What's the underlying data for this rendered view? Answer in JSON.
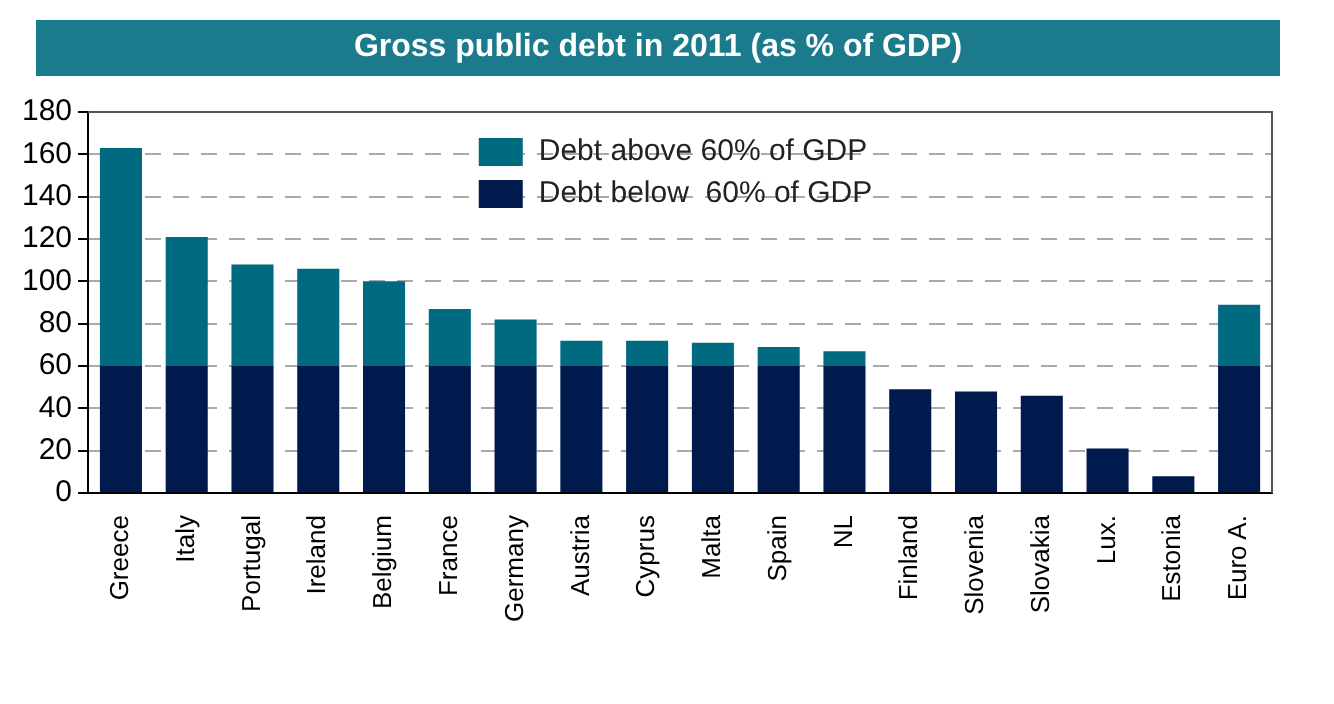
{
  "chart_data": {
    "type": "bar",
    "title": "Gross public debt in 2011 (as % of GDP)",
    "categories": [
      "Greece",
      "Italy",
      "Portugal",
      "Ireland",
      "Belgium",
      "France",
      "Germany",
      "Austria",
      "Cyprus",
      "Malta",
      "Spain",
      "NL",
      "Finland",
      "Slovenia",
      "Slovakia",
      "Lux.",
      "Estonia",
      "Euro A."
    ],
    "series": [
      {
        "name": "Debt below  60% of GDP",
        "color": "#001a4d",
        "values": [
          60,
          60,
          60,
          60,
          60,
          60,
          60,
          60,
          60,
          60,
          60,
          60,
          49,
          48,
          46,
          21,
          8,
          60
        ]
      },
      {
        "name": "Debt above 60% of GDP",
        "color": "#006a80",
        "values": [
          103,
          61,
          48,
          46,
          40,
          27,
          22,
          12,
          12,
          11,
          9,
          7,
          null,
          null,
          null,
          null,
          null,
          29
        ]
      }
    ],
    "stacked": true,
    "ylim": [
      0,
      180
    ],
    "yticks": [
      0,
      20,
      40,
      60,
      80,
      100,
      120,
      140,
      160,
      180
    ],
    "grid": "y",
    "legend": "top"
  }
}
